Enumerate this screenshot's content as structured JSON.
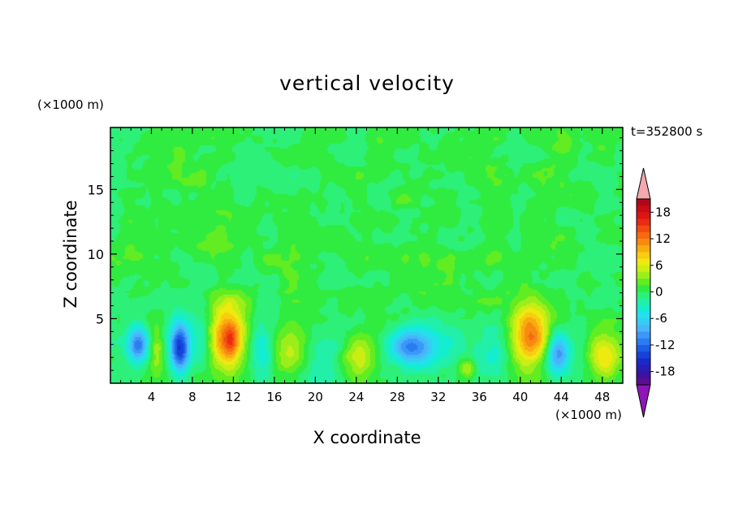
{
  "chart_data": {
    "type": "heatmap",
    "title": "vertical velocity",
    "xlabel": "X coordinate",
    "ylabel": "Z coordinate",
    "x_unit": "(×1000 m)",
    "z_unit": "(×1000 m)",
    "time_label": "t=352800 s",
    "xlim": [
      0,
      50
    ],
    "ylim": [
      0,
      19.8
    ],
    "x_ticks": [
      4,
      8,
      12,
      16,
      20,
      24,
      28,
      32,
      36,
      40,
      44,
      48
    ],
    "y_ticks": [
      5,
      10,
      15
    ],
    "colorbar": {
      "levels": [
        -21,
        -19.5,
        -18,
        -16.5,
        -15,
        -13.5,
        -12,
        -10.5,
        -9,
        -7.5,
        -6,
        -4.5,
        -3,
        -1.5,
        0,
        1.5,
        3,
        4.5,
        6,
        7.5,
        9,
        10.5,
        12,
        13.5,
        15,
        16.5,
        18,
        19.5,
        21
      ],
      "tick_labels": [
        "18",
        "12",
        "6",
        "0",
        "-6",
        "-12",
        "-18"
      ],
      "tick_values": [
        18,
        12,
        6,
        0,
        -6,
        -12,
        -18
      ],
      "colors": [
        "#5a0f8e",
        "#3b12a2",
        "#2a1cb4",
        "#1a2ac8",
        "#1642d8",
        "#1c5ee4",
        "#2a7cf0",
        "#3a98f8",
        "#4ab4fa",
        "#36ccf4",
        "#24e0ec",
        "#14eed0",
        "#22f0a8",
        "#2cf078",
        "#30ec40",
        "#62ec22",
        "#9cee1a",
        "#caee14",
        "#eeea10",
        "#f8cc10",
        "#f8ac10",
        "#f88a10",
        "#f66a10",
        "#f24a10",
        "#ea2a12",
        "#de1414",
        "#c80c18",
        "#b00818"
      ],
      "below_color": "#8e16b8",
      "above_color": "#f4a8b0"
    },
    "features": [
      {
        "x": 2.7,
        "z": 3.0,
        "sx": 0.7,
        "sz": 0.9,
        "w": -11
      },
      {
        "x": 4.5,
        "z": 2.5,
        "sx": 0.5,
        "sz": 1.2,
        "w": 4
      },
      {
        "x": 6.8,
        "z": 2.8,
        "sx": 0.7,
        "sz": 1.4,
        "w": -15
      },
      {
        "x": 9.0,
        "z": 3.0,
        "sx": 0.7,
        "sz": 1.5,
        "w": -3
      },
      {
        "x": 11.4,
        "z": 3.7,
        "sx": 1.2,
        "sz": 1.8,
        "w": 13
      },
      {
        "x": 11.8,
        "z": 3.2,
        "sx": 0.4,
        "sz": 0.7,
        "w": 4
      },
      {
        "x": 14.8,
        "z": 2.4,
        "sx": 0.9,
        "sz": 1.4,
        "w": -5
      },
      {
        "x": 17.6,
        "z": 2.6,
        "sx": 1.3,
        "sz": 1.4,
        "w": 6
      },
      {
        "x": 20.5,
        "z": 1.8,
        "sx": 2.2,
        "sz": 1.2,
        "w": -3.5
      },
      {
        "x": 24.2,
        "z": 2.0,
        "sx": 1.5,
        "sz": 1.2,
        "w": 6
      },
      {
        "x": 29.2,
        "z": 2.8,
        "sx": 1.4,
        "sz": 1.0,
        "w": -11
      },
      {
        "x": 32.5,
        "z": 2.5,
        "sx": 1.6,
        "sz": 1.5,
        "w": -2
      },
      {
        "x": 34.8,
        "z": 1.2,
        "sx": 0.6,
        "sz": 0.5,
        "w": 6
      },
      {
        "x": 37.5,
        "z": 2.0,
        "sx": 1.5,
        "sz": 1.4,
        "w": -2
      },
      {
        "x": 41.0,
        "z": 3.8,
        "sx": 1.3,
        "sz": 1.8,
        "w": 12
      },
      {
        "x": 43.7,
        "z": 2.3,
        "sx": 0.8,
        "sz": 1.2,
        "w": -10
      },
      {
        "x": 48.2,
        "z": 2.2,
        "sx": 1.2,
        "sz": 1.3,
        "w": 8
      },
      {
        "x": 46.2,
        "z": 3.5,
        "sx": 0.6,
        "sz": 1.0,
        "w": -2
      }
    ]
  }
}
